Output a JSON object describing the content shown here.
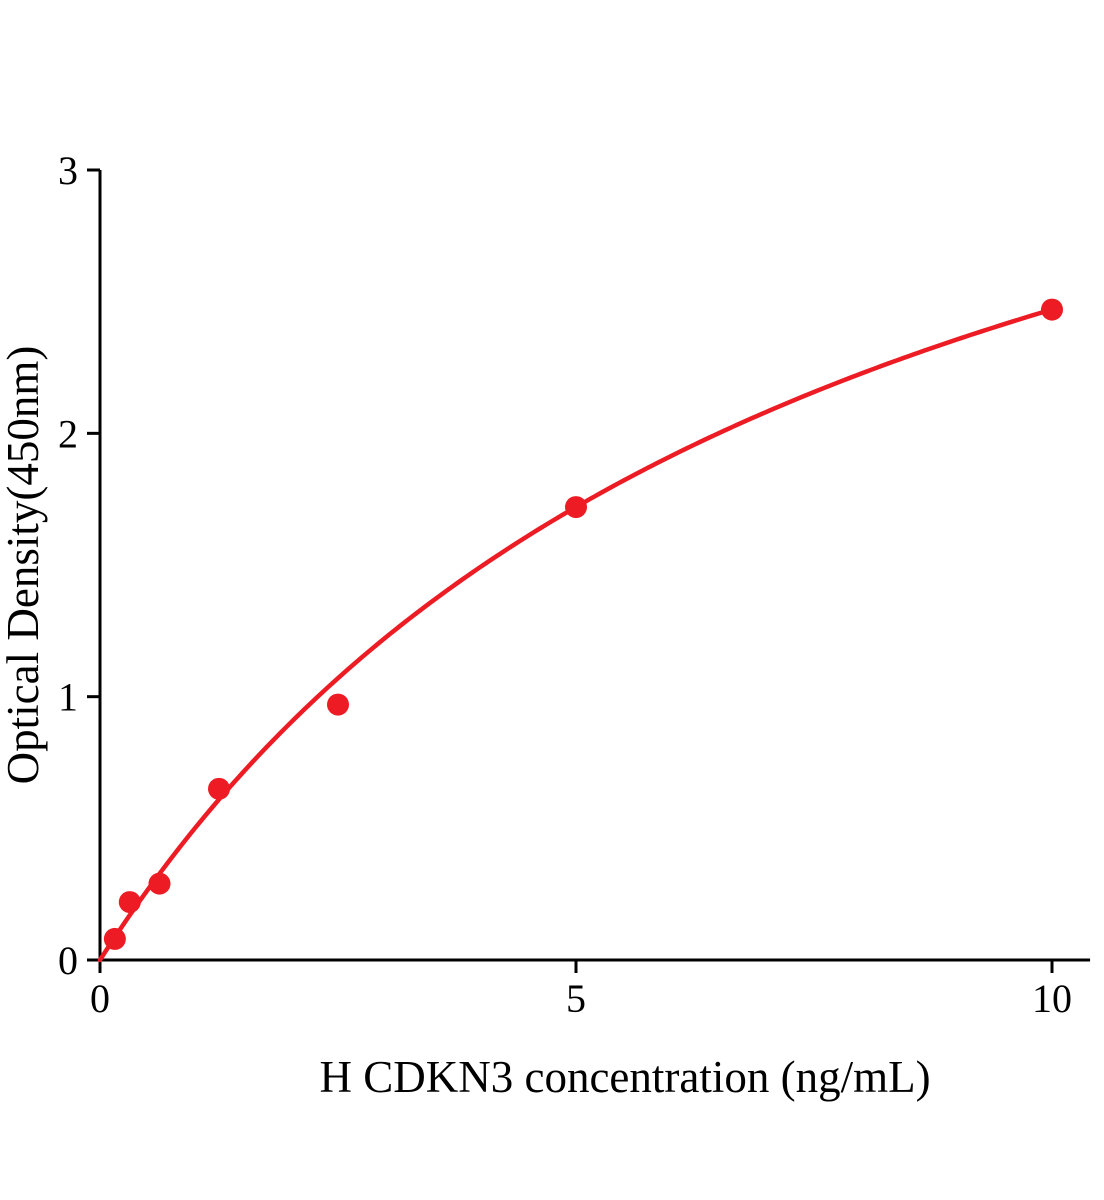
{
  "chart_data": {
    "type": "scatter",
    "title": "",
    "xlabel": "H CDKN3 concentration (ng/mL)",
    "ylabel": "Optical Density(450nm)",
    "x": [
      0.156,
      0.313,
      0.625,
      1.25,
      2.5,
      5,
      10
    ],
    "y": [
      0.08,
      0.22,
      0.29,
      0.65,
      0.97,
      1.72,
      2.47
    ],
    "xlim": [
      0,
      10.4
    ],
    "ylim": [
      0,
      3
    ],
    "xticks": [
      0,
      5,
      10
    ],
    "yticks": [
      0,
      1,
      2,
      3
    ],
    "grid": false,
    "legend": null,
    "marker_color": "#ed1c24",
    "line_color": "#ed1c24",
    "axis_color": "#000000",
    "curve_fit": {
      "model": "y = a*x/(b+x)",
      "a": 4.38,
      "b": 7.73
    }
  }
}
